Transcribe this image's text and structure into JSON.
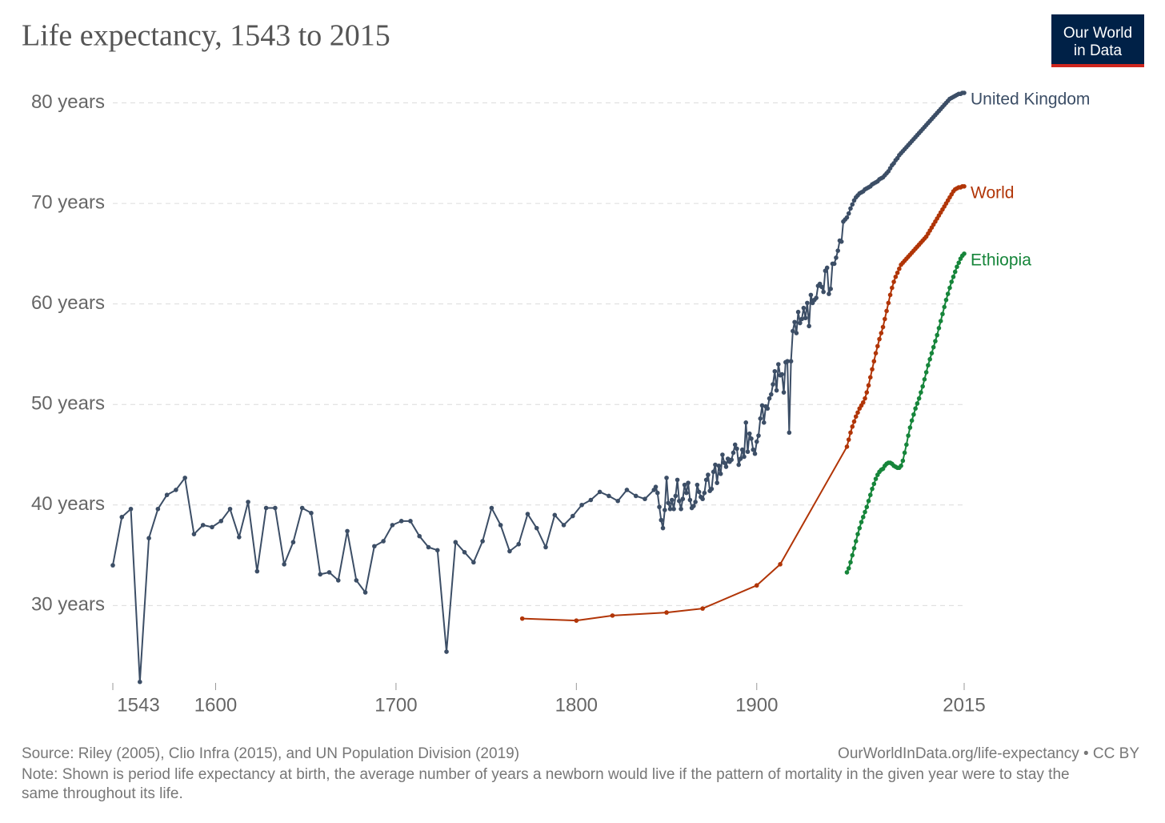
{
  "chart_data": {
    "type": "line",
    "title": "Life expectancy, 1543 to 2015",
    "logo": [
      "Our World",
      "in Data"
    ],
    "source": "Source: Riley (2005), Clio Infra (2015), and UN Population Division (2019)",
    "url": "OurWorldInData.org/life-expectancy • CC BY",
    "note": "Note: Shown is period life expectancy at birth, the average number of years a newborn would live if the pattern of mortality in the given year were to stay the same throughout its life.",
    "xlim": [
      1543,
      2015
    ],
    "xticks": [
      1543,
      1600,
      1700,
      1800,
      1900,
      2015
    ],
    "ylim": [
      22.3,
      81
    ],
    "yticks": [
      {
        "value": 30,
        "label": "30 years"
      },
      {
        "value": 40,
        "label": "40 years"
      },
      {
        "value": 50,
        "label": "50 years"
      },
      {
        "value": 60,
        "label": "60 years"
      },
      {
        "value": 70,
        "label": "70 years"
      },
      {
        "value": 80,
        "label": "80 years"
      }
    ],
    "grid": true,
    "series": [
      {
        "name": "United Kingdom",
        "color": "#3c4e66",
        "x": [
          1543,
          1548,
          1553,
          1558,
          1563,
          1568,
          1573,
          1578,
          1583,
          1588,
          1593,
          1598,
          1603,
          1608,
          1613,
          1618,
          1623,
          1628,
          1633,
          1638,
          1643,
          1648,
          1653,
          1658,
          1663,
          1668,
          1673,
          1678,
          1683,
          1688,
          1693,
          1698,
          1703,
          1708,
          1713,
          1718,
          1723,
          1728,
          1733,
          1738,
          1743,
          1748,
          1753,
          1758,
          1763,
          1768,
          1773,
          1778,
          1783,
          1788,
          1793,
          1798,
          1803,
          1808,
          1813,
          1818,
          1823,
          1828,
          1833,
          1838,
          1843,
          1844,
          1845,
          1846,
          1847,
          1848,
          1849,
          1850,
          1851,
          1852,
          1853,
          1854,
          1855,
          1856,
          1857,
          1858,
          1859,
          1860,
          1861,
          1862,
          1863,
          1864,
          1865,
          1866,
          1867,
          1868,
          1869,
          1870,
          1871,
          1872,
          1873,
          1874,
          1875,
          1876,
          1877,
          1878,
          1879,
          1880,
          1881,
          1882,
          1883,
          1884,
          1885,
          1886,
          1887,
          1888,
          1889,
          1890,
          1891,
          1892,
          1893,
          1894,
          1895,
          1896,
          1897,
          1898,
          1899,
          1900,
          1901,
          1902,
          1903,
          1904,
          1905,
          1906,
          1907,
          1908,
          1909,
          1910,
          1911,
          1912,
          1913,
          1914,
          1915,
          1916,
          1917,
          1918,
          1919,
          1920,
          1921,
          1922,
          1923,
          1924,
          1925,
          1926,
          1927,
          1928,
          1929,
          1930,
          1931,
          1932,
          1933,
          1934,
          1935,
          1936,
          1937,
          1938,
          1939,
          1940,
          1941,
          1942,
          1943,
          1944,
          1945,
          1946,
          1947,
          1948,
          1949,
          1950,
          1951,
          1952,
          1953,
          1954,
          1955,
          1956,
          1957,
          1958,
          1959,
          1960,
          1961,
          1962,
          1963,
          1964,
          1965,
          1966,
          1967,
          1968,
          1969,
          1970,
          1971,
          1972,
          1973,
          1974,
          1975,
          1976,
          1977,
          1978,
          1979,
          1980,
          1981,
          1982,
          1983,
          1984,
          1985,
          1986,
          1987,
          1988,
          1989,
          1990,
          1991,
          1992,
          1993,
          1994,
          1995,
          1996,
          1997,
          1998,
          1999,
          2000,
          2001,
          2002,
          2003,
          2004,
          2005,
          2006,
          2007,
          2008,
          2009,
          2010,
          2011,
          2012,
          2013,
          2014,
          2015
        ],
        "values": [
          34.0,
          38.8,
          39.6,
          22.4,
          36.7,
          39.6,
          41.0,
          41.5,
          42.7,
          37.1,
          38.0,
          37.8,
          38.4,
          39.6,
          36.8,
          40.3,
          33.4,
          39.7,
          39.7,
          34.1,
          36.3,
          39.7,
          39.2,
          33.1,
          33.3,
          32.5,
          37.4,
          32.5,
          31.3,
          35.9,
          36.4,
          38.0,
          38.4,
          38.4,
          36.9,
          35.8,
          35.5,
          25.4,
          36.3,
          35.3,
          34.3,
          36.4,
          39.7,
          38.0,
          35.4,
          36.1,
          39.1,
          37.7,
          35.8,
          39.0,
          38.0,
          38.9,
          40.0,
          40.5,
          41.3,
          40.9,
          40.4,
          41.5,
          40.9,
          40.6,
          41.5,
          41.8,
          41.2,
          39.8,
          38.5,
          37.7,
          39.5,
          42.7,
          40.2,
          39.6,
          40.5,
          39.6,
          40.9,
          42.5,
          40.4,
          39.6,
          40.6,
          42.0,
          41.2,
          42.2,
          40.5,
          39.7,
          39.9,
          40.3,
          42.0,
          41.3,
          40.8,
          40.6,
          41.2,
          42.5,
          43.0,
          41.4,
          41.6,
          43.3,
          44.0,
          42.2,
          43.9,
          43.1,
          45.0,
          44.2,
          43.8,
          44.6,
          44.3,
          44.5,
          45.2,
          46.0,
          45.6,
          44.0,
          44.6,
          45.5,
          44.8,
          48.2,
          45.3,
          47.1,
          46.6,
          45.5,
          45.1,
          46.3,
          46.9,
          48.6,
          49.9,
          48.2,
          49.8,
          49.6,
          50.6,
          51.0,
          52.0,
          53.3,
          51.4,
          54.0,
          52.9,
          53.0,
          51.2,
          54.2,
          54.3,
          47.2,
          54.3,
          57.3,
          58.2,
          57.1,
          59.2,
          58.1,
          58.5,
          59.6,
          58.6,
          60.1,
          57.8,
          60.9,
          60.1,
          60.4,
          60.6,
          61.8,
          62.0,
          61.7,
          61.2,
          63.3,
          63.6,
          61.0,
          61.5,
          64.0,
          64.0,
          64.6,
          65.3,
          66.3,
          66.2,
          68.2,
          68.4,
          68.6,
          69.0,
          69.5,
          69.9,
          70.3,
          70.6,
          70.8,
          71.0,
          71.1,
          71.2,
          71.4,
          71.5,
          71.6,
          71.7,
          71.9,
          72.0,
          72.1,
          72.2,
          72.4,
          72.5,
          72.6,
          72.8,
          73.0,
          73.2,
          73.5,
          73.8,
          74.0,
          74.3,
          74.5,
          74.8,
          75.0,
          75.2,
          75.4,
          75.6,
          75.8,
          76.0,
          76.2,
          76.4,
          76.6,
          76.8,
          77.0,
          77.2,
          77.4,
          77.6,
          77.8,
          78.0,
          78.2,
          78.4,
          78.6,
          78.8,
          79.0,
          79.2,
          79.4,
          79.6,
          79.8,
          80.0,
          80.2,
          80.4,
          80.5,
          80.6,
          80.7,
          80.8,
          80.9,
          80.9,
          81.0,
          81.0
        ]
      },
      {
        "name": "World",
        "color": "#b13507",
        "x": [
          1770,
          1800,
          1820,
          1850,
          1870,
          1900,
          1913,
          1950,
          1951,
          1952,
          1953,
          1954,
          1955,
          1956,
          1957,
          1958,
          1959,
          1960,
          1961,
          1962,
          1963,
          1964,
          1965,
          1966,
          1967,
          1968,
          1969,
          1970,
          1971,
          1972,
          1973,
          1974,
          1975,
          1976,
          1977,
          1978,
          1979,
          1980,
          1981,
          1982,
          1983,
          1984,
          1985,
          1986,
          1987,
          1988,
          1989,
          1990,
          1991,
          1992,
          1993,
          1994,
          1995,
          1996,
          1997,
          1998,
          1999,
          2000,
          2001,
          2002,
          2003,
          2004,
          2005,
          2006,
          2007,
          2008,
          2009,
          2010,
          2011,
          2012,
          2013,
          2014,
          2015
        ],
        "values": [
          28.7,
          28.5,
          29.0,
          29.3,
          29.7,
          32.0,
          34.1,
          45.8,
          46.5,
          47.2,
          47.8,
          48.3,
          48.8,
          49.2,
          49.6,
          49.9,
          50.2,
          50.6,
          51.2,
          51.9,
          52.7,
          53.5,
          54.3,
          55.1,
          55.8,
          56.5,
          57.1,
          57.7,
          58.5,
          59.3,
          60.1,
          60.9,
          61.6,
          62.2,
          62.7,
          63.1,
          63.5,
          63.9,
          64.1,
          64.3,
          64.5,
          64.7,
          64.9,
          65.1,
          65.3,
          65.5,
          65.7,
          65.9,
          66.1,
          66.3,
          66.5,
          66.7,
          67.0,
          67.3,
          67.6,
          67.9,
          68.2,
          68.5,
          68.8,
          69.1,
          69.4,
          69.7,
          70.0,
          70.3,
          70.6,
          70.9,
          71.2,
          71.4,
          71.5,
          71.6,
          71.6,
          71.7,
          71.7
        ]
      },
      {
        "name": "Ethiopia",
        "color": "#16853a",
        "x": [
          1950,
          1951,
          1952,
          1953,
          1954,
          1955,
          1956,
          1957,
          1958,
          1959,
          1960,
          1961,
          1962,
          1963,
          1964,
          1965,
          1966,
          1967,
          1968,
          1969,
          1970,
          1971,
          1972,
          1973,
          1974,
          1975,
          1976,
          1977,
          1978,
          1979,
          1980,
          1981,
          1982,
          1983,
          1984,
          1985,
          1986,
          1987,
          1988,
          1989,
          1990,
          1991,
          1992,
          1993,
          1994,
          1995,
          1996,
          1997,
          1998,
          1999,
          2000,
          2001,
          2002,
          2003,
          2004,
          2005,
          2006,
          2007,
          2008,
          2009,
          2010,
          2011,
          2012,
          2013,
          2014,
          2015
        ],
        "values": [
          33.3,
          33.7,
          34.3,
          35.0,
          35.7,
          36.4,
          37.1,
          37.7,
          38.3,
          38.8,
          39.3,
          39.8,
          40.4,
          41.0,
          41.6,
          42.1,
          42.6,
          43.0,
          43.3,
          43.5,
          43.6,
          43.9,
          44.1,
          44.2,
          44.2,
          44.1,
          43.9,
          43.8,
          43.7,
          43.7,
          43.9,
          44.4,
          45.2,
          46.0,
          46.9,
          47.7,
          48.4,
          49.0,
          49.6,
          50.1,
          50.6,
          51.2,
          51.8,
          52.5,
          53.2,
          53.9,
          54.5,
          55.1,
          55.7,
          56.3,
          56.9,
          57.6,
          58.3,
          59.0,
          59.7,
          60.4,
          61.0,
          61.6,
          62.2,
          62.7,
          63.2,
          63.7,
          64.1,
          64.5,
          64.8,
          65.0
        ]
      }
    ]
  }
}
